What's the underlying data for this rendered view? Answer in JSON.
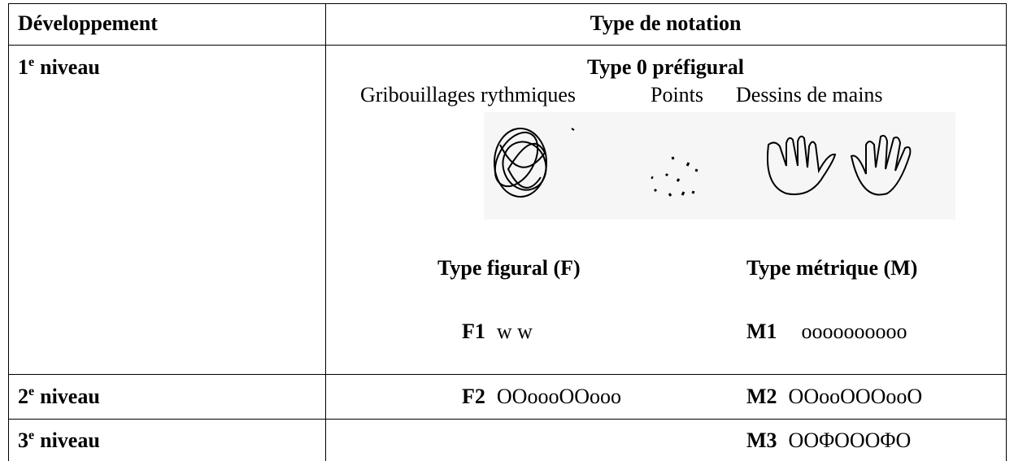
{
  "table": {
    "header": [
      "Développement",
      "Type de notation"
    ],
    "rows": [
      {
        "level": {
          "number": "1",
          "suffix": "e",
          "label": "niveau"
        },
        "title": "Type 0 préfigural",
        "drawing_labels": [
          "Gribouillages rythmiques",
          "Points",
          "Dessins de mains"
        ],
        "figural": {
          "title": "Type figural (F)",
          "code": "F1",
          "notation": "w w"
        },
        "metric": {
          "title": "Type métrique (M)",
          "code": "M1",
          "notation": "oooooooooo"
        }
      },
      {
        "level": {
          "number": "2",
          "suffix": "e",
          "label": "niveau"
        },
        "figural": {
          "code": "F2",
          "notation": "OOoooOOooo"
        },
        "metric": {
          "code": "M2",
          "notation": "OOooOOOooO"
        }
      },
      {
        "level": {
          "number": "3",
          "suffix": "e",
          "label": "niveau"
        },
        "metric": {
          "code": "M3",
          "notation": "OOΦOOOΦO"
        }
      }
    ]
  }
}
